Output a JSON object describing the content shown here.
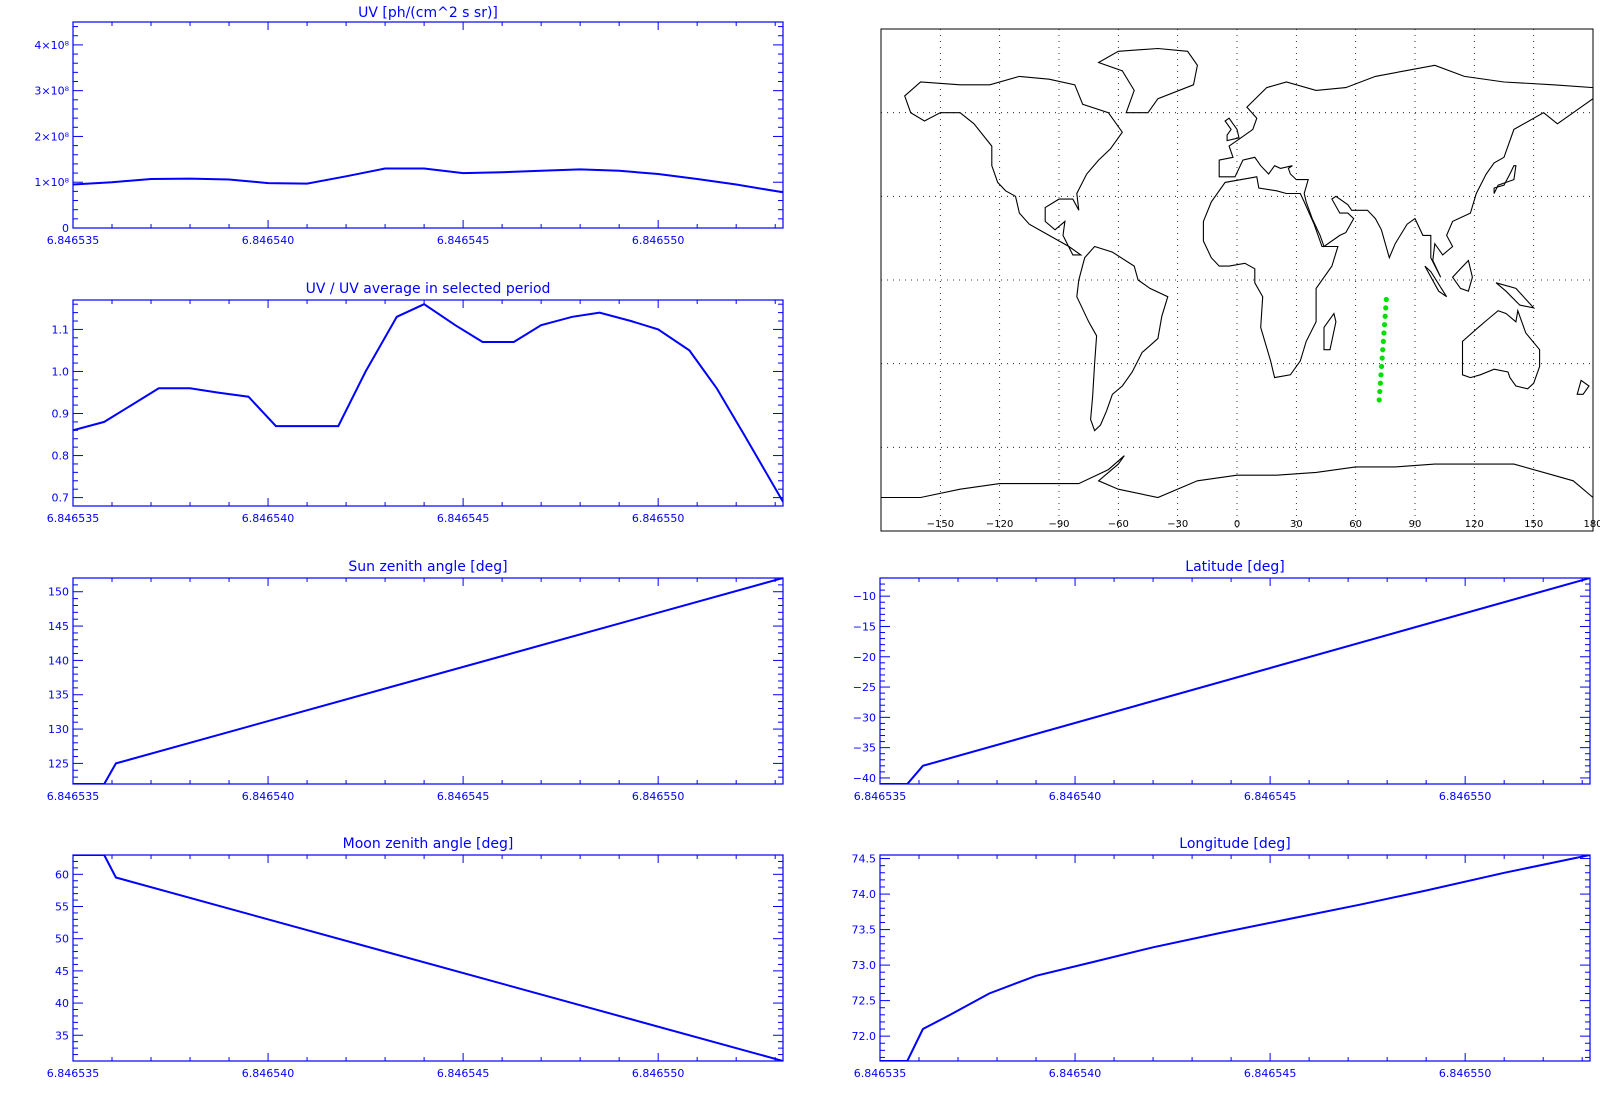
{
  "colors": {
    "axis": "#0000ff",
    "series": "#0000ff",
    "track": "#00e000",
    "map": "#000000"
  },
  "chart_data": [
    {
      "id": "uv",
      "type": "line",
      "title": "UV [ph/(cm^2 s sr)]",
      "xlim": [
        6.846535,
        6.8465532
      ],
      "ylim": [
        0,
        4.5
      ],
      "x_ticks": [
        6.846535,
        6.84654,
        6.846545,
        6.84655
      ],
      "x_tick_labels": [
        "6.846535",
        "6.846540",
        "6.846545",
        "6.846550"
      ],
      "y_ticks": [
        0,
        1,
        2,
        3,
        4
      ],
      "y_tick_labels": [
        "0",
        "1×10⁸",
        "2×10⁸",
        "3×10⁸",
        "4×10⁸"
      ],
      "series": [
        {
          "x": [
            6.846535,
            6.846536,
            6.846537,
            6.846538,
            6.846539,
            6.84654,
            6.846541,
            6.846542,
            6.846543,
            6.846544,
            6.846545,
            6.846546,
            6.846547,
            6.846548,
            6.846549,
            6.84655,
            6.846551,
            6.846552,
            6.8465532
          ],
          "y": [
            0.95,
            1.0,
            1.07,
            1.08,
            1.06,
            0.98,
            0.97,
            1.13,
            1.3,
            1.3,
            1.2,
            1.22,
            1.25,
            1.28,
            1.25,
            1.18,
            1.07,
            0.95,
            0.78
          ]
        }
      ]
    },
    {
      "id": "uv_ratio",
      "type": "line",
      "title": "UV / UV average in selected period",
      "xlim": [
        6.846535,
        6.8465532
      ],
      "ylim": [
        0.68,
        1.17
      ],
      "x_ticks": [
        6.846535,
        6.84654,
        6.846545,
        6.84655
      ],
      "x_tick_labels": [
        "6.846535",
        "6.846540",
        "6.846545",
        "6.846550"
      ],
      "y_ticks": [
        0.7,
        0.8,
        0.9,
        1.0,
        1.1
      ],
      "y_tick_labels": [
        "0.7",
        "0.8",
        "0.9",
        "1.0",
        "1.1"
      ],
      "series": [
        {
          "x": [
            6.846535,
            6.8465358,
            6.8465365,
            6.8465372,
            6.846538,
            6.8465387,
            6.8465395,
            6.8465402,
            6.846541,
            6.8465418,
            6.8465425,
            6.8465433,
            6.846544,
            6.8465448,
            6.8465455,
            6.8465463,
            6.846547,
            6.8465478,
            6.8465485,
            6.8465493,
            6.84655,
            6.8465508,
            6.8465515,
            6.8465522,
            6.8465532
          ],
          "y": [
            0.86,
            0.88,
            0.92,
            0.96,
            0.96,
            0.95,
            0.94,
            0.87,
            0.87,
            0.87,
            1.0,
            1.13,
            1.16,
            1.11,
            1.07,
            1.07,
            1.11,
            1.13,
            1.14,
            1.12,
            1.1,
            1.05,
            0.96,
            0.85,
            0.69
          ]
        }
      ]
    },
    {
      "id": "sun_zenith",
      "type": "line",
      "title": "Sun zenith angle [deg]",
      "xlim": [
        6.846535,
        6.8465532
      ],
      "ylim": [
        122,
        152
      ],
      "x_ticks": [
        6.846535,
        6.84654,
        6.846545,
        6.84655
      ],
      "x_tick_labels": [
        "6.846535",
        "6.846540",
        "6.846545",
        "6.846550"
      ],
      "y_ticks": [
        125,
        130,
        135,
        140,
        145,
        150
      ],
      "y_tick_labels": [
        "125",
        "130",
        "135",
        "140",
        "145",
        "150"
      ],
      "series": [
        {
          "x": [
            6.846535,
            6.8465358,
            6.8465361,
            6.8465532
          ],
          "y": [
            122,
            122,
            125,
            152
          ]
        }
      ]
    },
    {
      "id": "latitude",
      "type": "line",
      "title": "Latitude [deg]",
      "xlim": [
        6.846535,
        6.8465532
      ],
      "ylim": [
        -41,
        -7
      ],
      "x_ticks": [
        6.846535,
        6.84654,
        6.846545,
        6.84655
      ],
      "x_tick_labels": [
        "6.846535",
        "6.846540",
        "6.846545",
        "6.846550"
      ],
      "y_ticks": [
        -40,
        -35,
        -30,
        -25,
        -20,
        -15,
        -10
      ],
      "y_tick_labels": [
        "−40",
        "−35",
        "−30",
        "−25",
        "−20",
        "−15",
        "−10"
      ],
      "series": [
        {
          "x": [
            6.846535,
            6.8465357,
            6.8465361,
            6.8465532
          ],
          "y": [
            -41,
            -41,
            -38,
            -7
          ]
        }
      ]
    },
    {
      "id": "moon_zenith",
      "type": "line",
      "title": "Moon zenith angle [deg]",
      "xlim": [
        6.846535,
        6.8465532
      ],
      "ylim": [
        31,
        63
      ],
      "x_ticks": [
        6.846535,
        6.84654,
        6.846545,
        6.84655
      ],
      "x_tick_labels": [
        "6.846535",
        "6.846540",
        "6.846545",
        "6.846550"
      ],
      "y_ticks": [
        35,
        40,
        45,
        50,
        55,
        60
      ],
      "y_tick_labels": [
        "35",
        "40",
        "45",
        "50",
        "55",
        "60"
      ],
      "series": [
        {
          "x": [
            6.846535,
            6.8465358,
            6.8465361,
            6.8465532
          ],
          "y": [
            63,
            63,
            59.5,
            31
          ]
        }
      ]
    },
    {
      "id": "longitude",
      "type": "line",
      "title": "Longitude [deg]",
      "xlim": [
        6.846535,
        6.8465532
      ],
      "ylim": [
        71.65,
        74.55
      ],
      "x_ticks": [
        6.846535,
        6.84654,
        6.846545,
        6.84655
      ],
      "x_tick_labels": [
        "6.846535",
        "6.846540",
        "6.846545",
        "6.846550"
      ],
      "y_ticks": [
        72.0,
        72.5,
        73.0,
        73.5,
        74.0,
        74.5
      ],
      "y_tick_labels": [
        "72.0",
        "72.5",
        "73.0",
        "73.5",
        "74.0",
        "74.5"
      ],
      "series": [
        {
          "x": [
            6.846535,
            6.8465357,
            6.8465361,
            6.8465368,
            6.8465378,
            6.846539,
            6.8465405,
            6.846542,
            6.8465437,
            6.8465455,
            6.8465473,
            6.846549,
            6.846551,
            6.8465532
          ],
          "y": [
            71.65,
            71.65,
            72.1,
            72.3,
            72.6,
            72.85,
            73.05,
            73.25,
            73.45,
            73.65,
            73.85,
            74.05,
            74.3,
            74.55
          ]
        }
      ]
    },
    {
      "id": "map",
      "type": "scatter",
      "xlim": [
        -180,
        180
      ],
      "ylim": [
        -90,
        90
      ],
      "x_ticks": [
        -150,
        -120,
        -90,
        -60,
        -30,
        0,
        30,
        60,
        90,
        120,
        150,
        180
      ],
      "x_tick_labels": [
        "−150",
        "−120",
        "−90",
        "−60",
        "−30",
        "0",
        "30",
        "60",
        "90",
        "120",
        "150",
        "180"
      ],
      "grid": true,
      "series": [
        {
          "x": [
            75.5,
            75.2,
            74.9,
            74.6,
            74.3,
            74.0,
            73.7,
            73.4,
            73.1,
            72.8,
            72.5,
            72.2,
            71.9
          ],
          "y": [
            -7,
            -10,
            -13,
            -16,
            -19,
            -22,
            -25,
            -28,
            -31,
            -34,
            -37,
            -40,
            -43
          ]
        }
      ]
    }
  ]
}
